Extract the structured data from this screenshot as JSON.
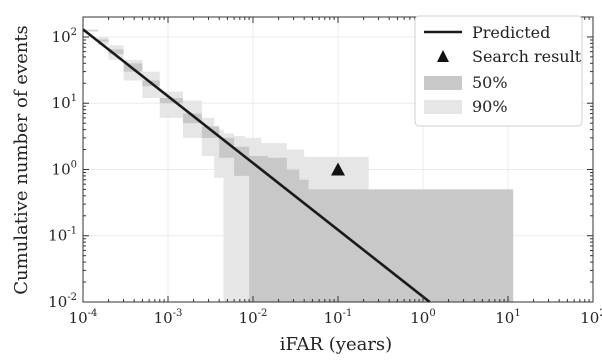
{
  "chart_data": {
    "type": "line",
    "title": "",
    "xlabel": "iFAR (years)",
    "ylabel": "Cumulative number of events",
    "xscale": "log",
    "yscale": "log",
    "xlim": [
      0.0001,
      100
    ],
    "ylim": [
      0.01,
      200
    ],
    "grid": true,
    "legend_position": "top-right",
    "x_tick_labels": [
      "10",
      "10",
      "10",
      "10",
      "10",
      "10",
      "10"
    ],
    "x_tick_exponents": [
      "-4",
      "-3",
      "-2",
      "-1",
      "0",
      "1",
      "2"
    ],
    "x_tick_values": [
      0.0001,
      0.001,
      0.01,
      0.1,
      1,
      10,
      100
    ],
    "y_tick_labels": [
      "10",
      "10",
      "10",
      "10",
      "10"
    ],
    "y_tick_exponents": [
      "-2",
      "-1",
      "0",
      "1",
      "2"
    ],
    "y_tick_values": [
      0.01,
      0.1,
      1,
      10,
      100
    ],
    "series": [
      {
        "name": "Predicted",
        "kind": "line",
        "color": "#1a1a1a",
        "x": [
          0.0001,
          1.2
        ],
        "y": [
          130,
          0.01
        ]
      },
      {
        "name": "Search result",
        "kind": "marker",
        "marker": "triangle-up",
        "color": "#111111",
        "x": [
          0.1
        ],
        "y": [
          1.0
        ]
      },
      {
        "name": "90%",
        "kind": "band",
        "color": "#e6e6e6",
        "x": [
          0.0001,
          0.00015,
          0.0002,
          0.0003,
          0.0005,
          0.0008,
          0.0015,
          0.0025,
          0.0035,
          0.0045,
          0.006,
          0.008,
          0.0125,
          0.025,
          0.04,
          0.05,
          0.23,
          0.3,
          1.0,
          11.5
        ],
        "lower": [
          120,
          75,
          45,
          22,
          12,
          6,
          3,
          1.6,
          0.75,
          0.01,
          0.01,
          0.01,
          0.01,
          0.01,
          0.01,
          0.01,
          0.01,
          0.01,
          0.01,
          0.01
        ],
        "upper": [
          130,
          100,
          75,
          45,
          30,
          15,
          11,
          6,
          4,
          3.5,
          3.2,
          3.0,
          2.5,
          2.0,
          1.55,
          1.55,
          0.5,
          0.5,
          0.5,
          0.5
        ]
      },
      {
        "name": "50%",
        "kind": "band",
        "color": "#c8c8c8",
        "x": [
          0.0001,
          0.00015,
          0.0002,
          0.0003,
          0.0005,
          0.0008,
          0.0015,
          0.0025,
          0.004,
          0.006,
          0.009,
          0.015,
          0.025,
          0.035,
          0.045,
          0.08,
          1.0,
          11.5
        ],
        "lower": [
          125,
          85,
          55,
          30,
          18,
          10,
          5,
          3,
          1.5,
          0.8,
          0.01,
          0.01,
          0.01,
          0.01,
          0.01,
          0.01,
          0.01,
          0.01
        ],
        "upper": [
          128,
          92,
          65,
          40,
          22,
          12,
          7,
          4.5,
          3.0,
          2.2,
          1.6,
          1.5,
          1.0,
          0.7,
          0.5,
          0.5,
          0.5,
          0.5
        ]
      }
    ]
  }
}
